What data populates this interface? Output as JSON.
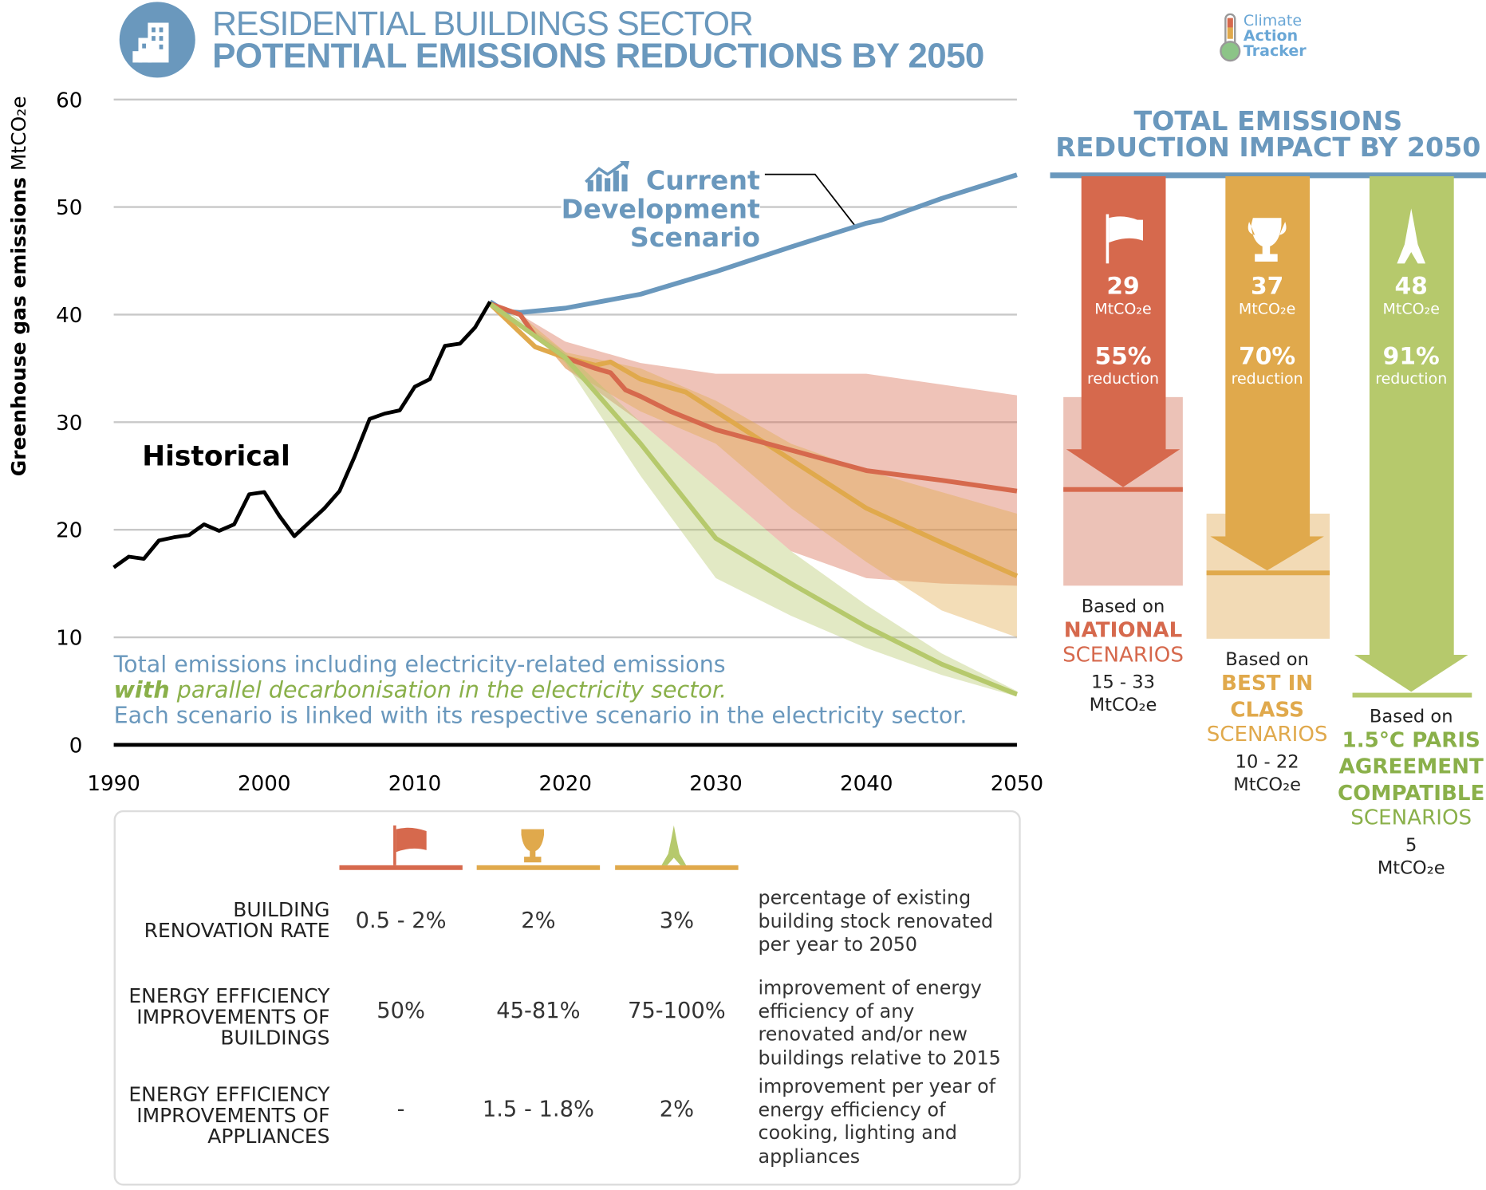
{
  "header": {
    "title_line1": "RESIDENTIAL BUILDINGS SECTOR",
    "title_line2": "POTENTIAL EMISSIONS REDUCTIONS BY 2050",
    "icon": "buildings-icon",
    "logo_lines": [
      "Climate",
      "Action",
      "Tracker"
    ]
  },
  "colors": {
    "blue": "#6a98bd",
    "national": "#d6694d",
    "best": "#e0a94c",
    "paris": "#b6c96c",
    "historical": "#000000"
  },
  "chart_data": {
    "type": "line",
    "ylabel_bold": "Greenhouse gas emissions",
    "ylabel_unit": "MtCO₂e",
    "xlim": [
      1990,
      2050
    ],
    "ylim": [
      0,
      60
    ],
    "xticks": [
      1990,
      2000,
      2010,
      2020,
      2030,
      2040,
      2050
    ],
    "yticks": [
      0,
      10,
      20,
      30,
      40,
      50,
      60
    ],
    "grid": true,
    "annotations": {
      "historical": "Historical",
      "current_l1": "Current",
      "current_l2": "Development",
      "current_l3": "Scenario"
    },
    "series": [
      {
        "name": "Historical",
        "color": "#000000",
        "x": [
          1990,
          1991,
          1992,
          1993,
          1994,
          1995,
          1996,
          1997,
          1998,
          1999,
          2000,
          2001,
          2002,
          2003,
          2004,
          2005,
          2006,
          2007,
          2008,
          2009,
          2010,
          2011,
          2012,
          2013,
          2014,
          2015
        ],
        "y": [
          16.5,
          17.5,
          17.3,
          19,
          19.3,
          19.5,
          20.5,
          19.9,
          20.5,
          23.3,
          23.5,
          21.3,
          19.4,
          20.7,
          22,
          23.6,
          26.8,
          30.3,
          30.8,
          31.1,
          33.3,
          34,
          37.1,
          37.3,
          38.8,
          41.2
        ]
      },
      {
        "name": "Current Development Scenario",
        "color": "#6a98bd",
        "x": [
          2015,
          2016,
          2017,
          2020,
          2025,
          2030,
          2035,
          2040,
          2041,
          2045,
          2050
        ],
        "y": [
          41.2,
          40.3,
          40.2,
          40.6,
          41.9,
          44,
          46.3,
          48.5,
          48.8,
          50.8,
          53
        ]
      },
      {
        "key": "national",
        "color": "#d6694d",
        "x": [
          2015,
          2017,
          2018,
          2020,
          2022,
          2023,
          2024,
          2025,
          2027,
          2030,
          2035,
          2040,
          2045,
          2050
        ],
        "y": [
          41,
          40,
          38,
          36,
          35,
          34.6,
          33,
          32.4,
          31,
          29.3,
          27.4,
          25.5,
          24.6,
          23.6
        ],
        "range_x": [
          2017,
          2020,
          2025,
          2030,
          2035,
          2040,
          2045,
          2050
        ],
        "range_low": [
          40,
          35,
          30,
          24,
          18,
          15.5,
          15,
          14.8
        ],
        "range_high": [
          40,
          37.5,
          35.5,
          34.5,
          34.5,
          34.5,
          33.5,
          32.5
        ]
      },
      {
        "key": "best",
        "color": "#e0a94c",
        "x": [
          2015,
          2018,
          2020,
          2022,
          2023,
          2025,
          2028,
          2030,
          2035,
          2040,
          2045,
          2050
        ],
        "y": [
          41,
          37,
          36,
          35.3,
          35.6,
          34,
          32.8,
          31,
          26.5,
          22,
          18.8,
          15.7
        ],
        "range_x": [
          2017,
          2020,
          2025,
          2030,
          2035,
          2040,
          2045,
          2050
        ],
        "range_low": [
          40,
          35,
          31,
          28,
          22,
          17,
          12.5,
          10
        ],
        "range_high": [
          40,
          36.5,
          35,
          32,
          28,
          25.5,
          23.5,
          21.5
        ]
      },
      {
        "key": "paris",
        "color": "#b6c96c",
        "x": [
          2015,
          2020,
          2025,
          2030,
          2035,
          2040,
          2045,
          2050
        ],
        "y": [
          41,
          36,
          28,
          19.2,
          15,
          11,
          7.5,
          4.7
        ],
        "range_x": [
          2016,
          2020,
          2025,
          2030,
          2035,
          2040,
          2045,
          2050
        ],
        "range_low": [
          40.5,
          35.5,
          25,
          15.5,
          12,
          9,
          6.5,
          4.5
        ],
        "range_high": [
          40.5,
          36.5,
          30,
          24,
          18,
          13,
          8.5,
          5
        ]
      }
    ]
  },
  "note": {
    "line1": "Total emissions including electricity-related emissions",
    "line2_em": "with",
    "line2_rest": " parallel decarbonisation in the electricity sector.",
    "line3": "Each scenario is linked with its respective scenario in the electricity sector."
  },
  "impact": {
    "title_l1": "TOTAL EMISSIONS",
    "title_l2": "REDUCTION IMPACT BY 2050",
    "columns": [
      {
        "icon": "flag-icon",
        "value": "29",
        "unit": "MtCO₂e",
        "pct": "55%",
        "pct_label": "reduction",
        "based": "Based on",
        "name_bold": "NATIONAL",
        "name_rest": "SCENARIOS",
        "range": "15 - 33",
        "range_unit": "MtCO₂e"
      },
      {
        "icon": "trophy-icon",
        "value": "37",
        "unit": "MtCO₂e",
        "pct": "70%",
        "pct_label": "reduction",
        "based": "Based on",
        "name_bold": "BEST IN CLASS",
        "name_rest": "SCENARIOS",
        "range": "10 - 22",
        "range_unit": "MtCO₂e"
      },
      {
        "icon": "eiffel-tower-icon",
        "value": "48",
        "unit": "MtCO₂e",
        "pct": "91%",
        "pct_label": "reduction",
        "based": "Based on",
        "name_bold": "1.5°C PARIS AGREEMENT COMPATIBLE",
        "name_rest": "SCENARIOS",
        "range": "5",
        "range_unit": "MtCO₂e"
      }
    ]
  },
  "table": {
    "rows": [
      {
        "label": "BUILDING RENOVATION RATE",
        "values": [
          "0.5 - 2%",
          "2%",
          "3%"
        ],
        "desc": "percentage of existing building stock renovated per year to 2050"
      },
      {
        "label": "ENERGY EFFICIENCY IMPROVEMENTS OF BUILDINGS",
        "values": [
          "50%",
          "45-81%",
          "75-100%"
        ],
        "desc": "improvement of energy efficiency of any renovated and/or new buildings relative to 2015"
      },
      {
        "label": "ENERGY EFFICIENCY IMPROVEMENTS OF APPLIANCES",
        "values": [
          "-",
          "1.5 - 1.8%",
          "2%"
        ],
        "desc": "improvement per year of energy efficiency of cooking, lighting and appliances"
      }
    ]
  }
}
